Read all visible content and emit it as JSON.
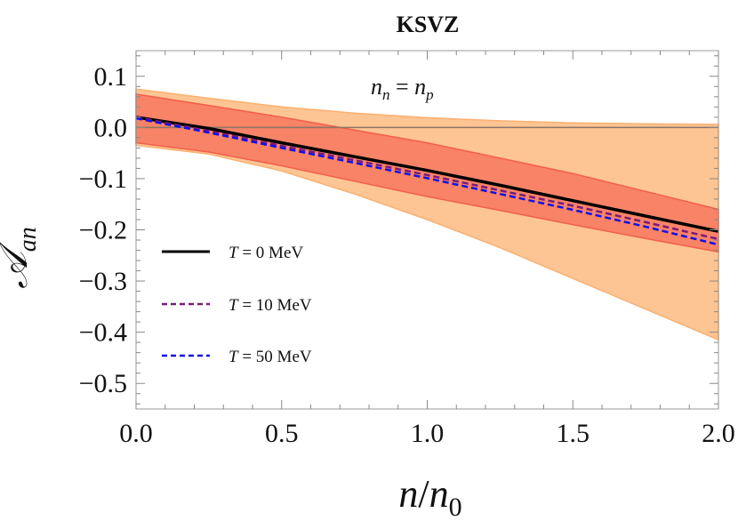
{
  "chart_data": {
    "type": "line",
    "title": "KSVZ",
    "xlabel": "n/n0",
    "ylabel": "A_an",
    "xlim": [
      0.0,
      2.0
    ],
    "ylim": [
      -0.55,
      0.15
    ],
    "x_ticks": [
      {
        "value": 0.0,
        "label": "0.0"
      },
      {
        "value": 0.5,
        "label": "0.5"
      },
      {
        "value": 1.0,
        "label": "1.0"
      },
      {
        "value": 1.5,
        "label": "1.5"
      },
      {
        "value": 2.0,
        "label": "2.0"
      }
    ],
    "y_ticks": [
      {
        "value": 0.1,
        "label": "0.1"
      },
      {
        "value": 0.0,
        "label": "0.0"
      },
      {
        "value": -0.1,
        "label": "−0.1"
      },
      {
        "value": -0.2,
        "label": "−0.2"
      },
      {
        "value": -0.3,
        "label": "−0.3"
      },
      {
        "value": -0.4,
        "label": "−0.4"
      },
      {
        "value": -0.5,
        "label": "−0.5"
      }
    ],
    "annotation": "n_n = n_p",
    "zero_line": true,
    "grid": false,
    "legend_position": "lower-left",
    "bands": [
      {
        "color": "#fdc593",
        "edge_color": "#fbb070",
        "x": [
          0.0,
          0.25,
          0.5,
          0.75,
          1.0,
          1.25,
          1.5,
          1.75,
          2.0
        ],
        "upper": [
          0.075,
          0.057,
          0.04,
          0.028,
          0.019,
          0.013,
          0.009,
          0.007,
          0.006
        ],
        "lower": [
          -0.035,
          -0.052,
          -0.085,
          -0.13,
          -0.18,
          -0.235,
          -0.295,
          -0.355,
          -0.415
        ]
      },
      {
        "color": "#f88367",
        "edge_color": "#f25f4a",
        "x": [
          0.0,
          0.25,
          0.5,
          0.75,
          1.0,
          1.25,
          1.5,
          1.75,
          2.0
        ],
        "upper": [
          0.065,
          0.043,
          0.02,
          -0.005,
          -0.03,
          -0.06,
          -0.09,
          -0.125,
          -0.16
        ],
        "lower": [
          -0.03,
          -0.048,
          -0.075,
          -0.105,
          -0.135,
          -0.162,
          -0.19,
          -0.217,
          -0.243
        ]
      }
    ],
    "series": [
      {
        "name": "T = 0 MeV",
        "color": "#000000",
        "dash": "solid",
        "x": [
          0.0,
          0.25,
          0.5,
          0.75,
          1.0,
          1.25,
          1.5,
          1.75,
          2.0
        ],
        "y": [
          0.02,
          -0.002,
          -0.03,
          -0.057,
          -0.084,
          -0.113,
          -0.143,
          -0.173,
          -0.203
        ]
      },
      {
        "name": "T = 10 MeV",
        "color": "#7a1a7a",
        "dash": "dashed",
        "x": [
          0.0,
          0.25,
          0.5,
          0.75,
          1.0,
          1.25,
          1.5,
          1.75,
          2.0
        ],
        "y": [
          0.02,
          -0.007,
          -0.036,
          -0.064,
          -0.093,
          -0.123,
          -0.153,
          -0.185,
          -0.218
        ]
      },
      {
        "name": "T = 50 MeV",
        "color": "#1010e8",
        "dash": "dashed",
        "x": [
          0.0,
          0.25,
          0.5,
          0.75,
          1.0,
          1.25,
          1.5,
          1.75,
          2.0
        ],
        "y": [
          0.018,
          -0.01,
          -0.04,
          -0.069,
          -0.099,
          -0.13,
          -0.161,
          -0.194,
          -0.229
        ]
      }
    ]
  }
}
